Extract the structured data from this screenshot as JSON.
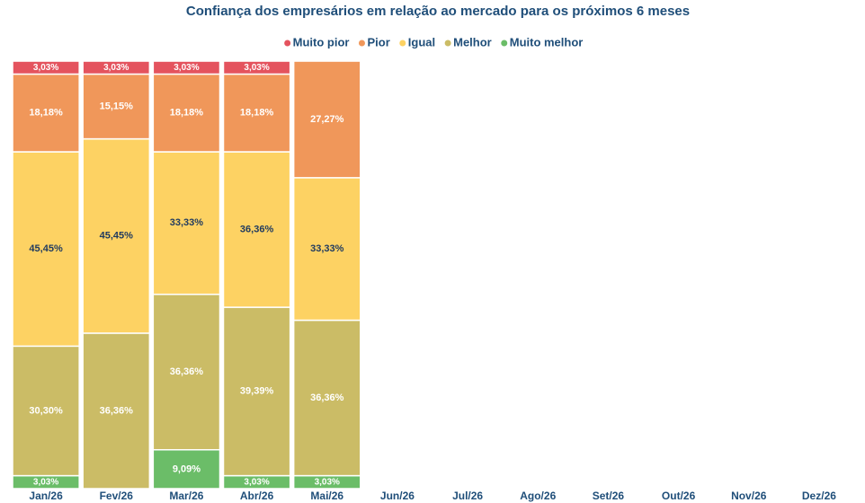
{
  "chart_data": {
    "type": "stacked-bar",
    "title": "Confiança dos empresários em relação ao mercado para os próximos 6 meses",
    "categories": [
      "Jan/26",
      "Fev/26",
      "Mar/26",
      "Abr/26",
      "Mai/26",
      "Jun/26",
      "Jul/26",
      "Ago/26",
      "Set/26",
      "Out/26",
      "Nov/26",
      "Dez/26"
    ],
    "ylim": [
      0,
      100
    ],
    "series": [
      {
        "name": "Muito melhor",
        "color": "#6bbd68",
        "values": [
          3.03,
          null,
          9.09,
          3.03,
          3.03,
          null,
          null,
          null,
          null,
          null,
          null,
          null
        ],
        "value_labels": [
          "3,03%",
          null,
          "9,09%",
          "3,03%",
          "3,03%",
          null,
          null,
          null,
          null,
          null,
          null,
          null
        ]
      },
      {
        "name": "Melhor",
        "color": "#cbbc66",
        "values": [
          30.3,
          36.36,
          36.36,
          39.39,
          36.36,
          null,
          null,
          null,
          null,
          null,
          null,
          null
        ],
        "value_labels": [
          "30,30%",
          "36,36%",
          "36,36%",
          "39,39%",
          "36,36%",
          null,
          null,
          null,
          null,
          null,
          null,
          null
        ]
      },
      {
        "name": "Igual",
        "color": "#fdd263",
        "values": [
          45.45,
          45.45,
          33.33,
          36.36,
          33.33,
          null,
          null,
          null,
          null,
          null,
          null,
          null
        ],
        "value_labels": [
          "45,45%",
          "45,45%",
          "33,33%",
          "36,36%",
          "33,33%",
          null,
          null,
          null,
          null,
          null,
          null,
          null
        ]
      },
      {
        "name": "Pior",
        "color": "#f0975a",
        "values": [
          18.18,
          15.15,
          18.18,
          18.18,
          27.27,
          null,
          null,
          null,
          null,
          null,
          null,
          null
        ],
        "value_labels": [
          "18,18%",
          "15,15%",
          "18,18%",
          "18,18%",
          "27,27%",
          null,
          null,
          null,
          null,
          null,
          null,
          null
        ]
      },
      {
        "name": "Muito pior",
        "color": "#e4535e",
        "values": [
          3.03,
          3.03,
          3.03,
          3.03,
          null,
          null,
          null,
          null,
          null,
          null,
          null,
          null
        ],
        "value_labels": [
          "3,03%",
          "3,03%",
          "3,03%",
          "3,03%",
          null,
          null,
          null,
          null,
          null,
          null,
          null,
          null
        ]
      }
    ]
  }
}
